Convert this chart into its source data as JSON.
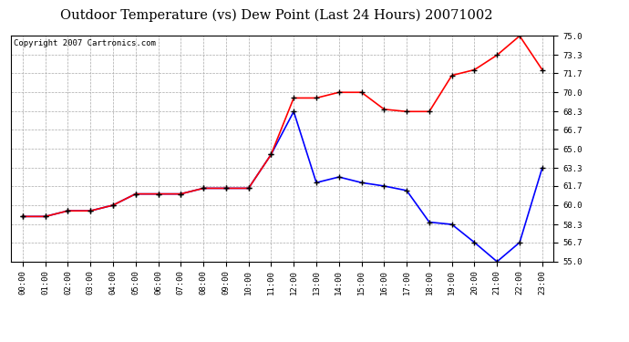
{
  "title": "Outdoor Temperature (vs) Dew Point (Last 24 Hours) 20071002",
  "copyright_text": "Copyright 2007 Cartronics.com",
  "x_labels": [
    "00:00",
    "01:00",
    "02:00",
    "03:00",
    "04:00",
    "05:00",
    "06:00",
    "07:00",
    "08:00",
    "09:00",
    "10:00",
    "11:00",
    "12:00",
    "13:00",
    "14:00",
    "15:00",
    "16:00",
    "17:00",
    "18:00",
    "19:00",
    "20:00",
    "21:00",
    "22:00",
    "23:00"
  ],
  "temp_data": [
    59.0,
    59.0,
    59.5,
    59.5,
    60.0,
    61.0,
    61.0,
    61.0,
    61.5,
    61.5,
    61.5,
    64.5,
    69.5,
    69.5,
    70.0,
    70.0,
    68.5,
    68.3,
    68.3,
    71.5,
    72.0,
    73.3,
    75.0,
    72.0
  ],
  "dew_data": [
    59.0,
    59.0,
    59.5,
    59.5,
    60.0,
    61.0,
    61.0,
    61.0,
    61.5,
    61.5,
    61.5,
    64.5,
    68.3,
    62.0,
    62.5,
    62.0,
    61.7,
    61.3,
    58.5,
    58.3,
    56.7,
    55.0,
    56.7,
    63.3
  ],
  "temp_color": "#ff0000",
  "dew_color": "#0000ff",
  "bg_color": "#ffffff",
  "plot_bg_color": "#ffffff",
  "grid_color": "#aaaaaa",
  "ylim": [
    55.0,
    75.0
  ],
  "yticks": [
    55.0,
    56.7,
    58.3,
    60.0,
    61.7,
    63.3,
    65.0,
    66.7,
    68.3,
    70.0,
    71.7,
    73.3,
    75.0
  ],
  "ytick_labels": [
    "55.0",
    "56.7",
    "58.3",
    "60.0",
    "61.7",
    "63.3",
    "65.0",
    "66.7",
    "68.3",
    "70.0",
    "71.7",
    "73.3",
    "75.0"
  ],
  "title_fontsize": 10.5,
  "copyright_fontsize": 6.5,
  "marker": "+",
  "markersize": 5,
  "markeredgewidth": 1.0,
  "linewidth": 1.2
}
